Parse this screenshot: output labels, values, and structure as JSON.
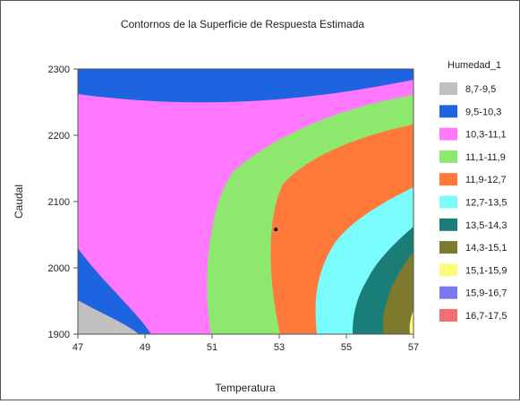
{
  "chart_data": {
    "type": "contour",
    "title": "Contornos de la Superficie de Respuesta Estimada",
    "xlabel": "Temperatura",
    "ylabel": "Caudal",
    "xlim": [
      47,
      57
    ],
    "ylim": [
      1900,
      2300
    ],
    "x_ticks": [
      "47",
      "49",
      "51",
      "53",
      "55",
      "57"
    ],
    "y_ticks": [
      "1900",
      "2000",
      "2100",
      "2200",
      "2300"
    ],
    "legend_title": "Humedad_1",
    "legend_position": "right",
    "levels": [
      {
        "range": "8,7-9,5",
        "color": "#c0c0c0"
      },
      {
        "range": "9,5-10,3",
        "color": "#1e63e0"
      },
      {
        "range": "10,3-11,1",
        "color": "#ff78ff"
      },
      {
        "range": "11,1-11,9",
        "color": "#8ee86e"
      },
      {
        "range": "11,9-12,7",
        "color": "#ff7a3a"
      },
      {
        "range": "12,7-13,5",
        "color": "#7afcfc"
      },
      {
        "range": "13,5-14,3",
        "color": "#1a7d78"
      },
      {
        "range": "14,3-15,1",
        "color": "#7d7a2e"
      },
      {
        "range": "15,1-15,9",
        "color": "#fcfc7a"
      },
      {
        "range": "15,9-16,7",
        "color": "#7878f0"
      },
      {
        "range": "16,7-17,5",
        "color": "#f07070"
      }
    ],
    "point": {
      "x": 52.9,
      "y": 2058
    }
  }
}
